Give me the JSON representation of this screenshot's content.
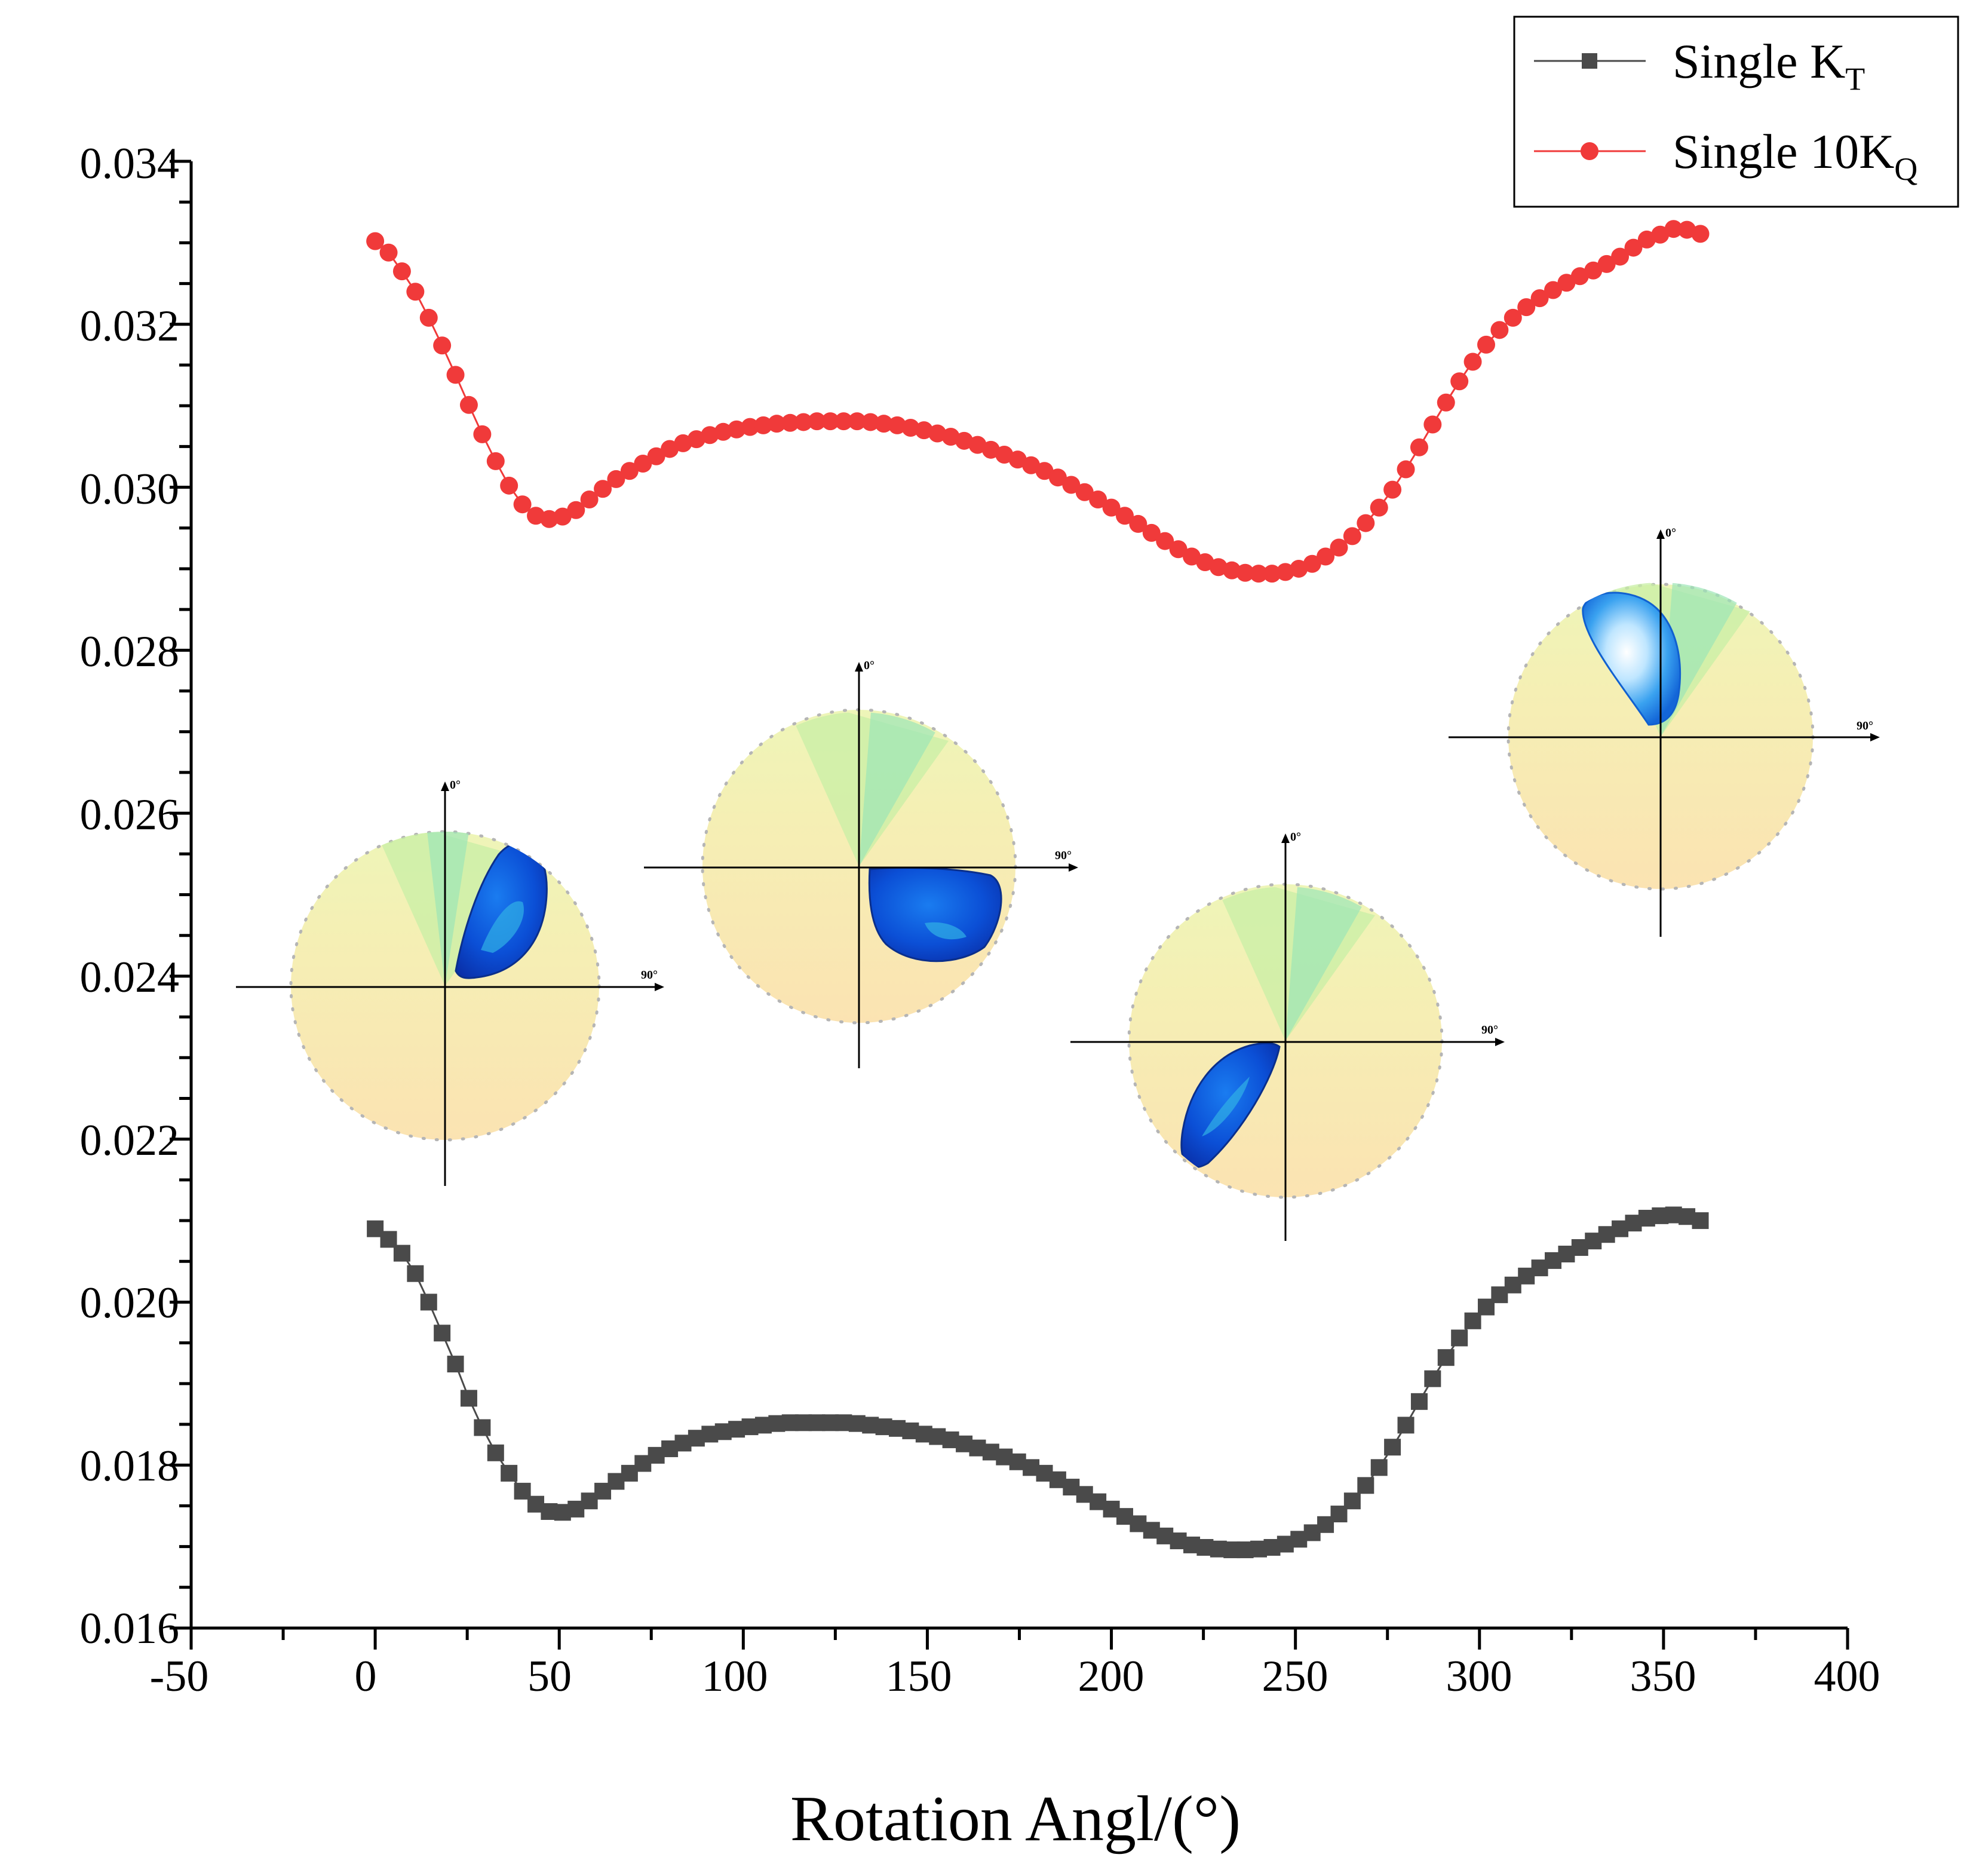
{
  "chart_data": {
    "type": "scatter-line",
    "title": "",
    "xlabel": "Rotation Angl/(°)",
    "ylabel": "",
    "xlim": [
      -50,
      400
    ],
    "ylim": [
      0.016,
      0.034
    ],
    "x_ticks": [
      "-50",
      "0",
      "50",
      "100",
      "150",
      "200",
      "250",
      "300",
      "350",
      "400"
    ],
    "y_ticks": [
      "0.016",
      "0.018",
      "0.020",
      "0.022",
      "0.024",
      "0.026",
      "0.028",
      "0.030",
      "0.032",
      "0.034"
    ],
    "grid": false,
    "legend_position": "top-right",
    "series": [
      {
        "name": "Single K_T",
        "label_main": "Single  K",
        "label_sub": "T",
        "marker": "square",
        "color": "#4a4a4a",
        "x": [
          0,
          3.64,
          7.27,
          10.91,
          14.55,
          18.18,
          21.82,
          25.45,
          29.09,
          32.73,
          36.36,
          40,
          43.64,
          47.27,
          50.91,
          54.55,
          58.18,
          61.82,
          65.45,
          69.09,
          72.73,
          76.36,
          80,
          83.64,
          87.27,
          90.91,
          94.55,
          98.18,
          101.82,
          105.45,
          109.09,
          112.73,
          116.36,
          120,
          123.64,
          127.27,
          130.91,
          134.55,
          138.18,
          141.82,
          145.45,
          149.09,
          152.73,
          156.36,
          160,
          163.64,
          167.27,
          170.91,
          174.55,
          178.18,
          181.82,
          185.45,
          189.09,
          192.73,
          196.36,
          200,
          203.64,
          207.27,
          210.91,
          214.55,
          218.18,
          221.82,
          225.45,
          229.09,
          232.73,
          236.36,
          240,
          243.64,
          247.27,
          250.91,
          254.55,
          258.18,
          261.82,
          265.45,
          269.09,
          272.73,
          276.36,
          280,
          283.64,
          287.27,
          290.91,
          294.55,
          298.18,
          301.82,
          305.45,
          309.09,
          312.73,
          316.36,
          320,
          323.64,
          327.27,
          330.91,
          334.55,
          338.18,
          341.82,
          345.45,
          349.09,
          352.73,
          356.36,
          360
        ],
        "y": [
          0.0209,
          0.02077,
          0.0206,
          0.02035,
          0.02,
          0.01962,
          0.01924,
          0.01882,
          0.01846,
          0.01815,
          0.0179,
          0.01768,
          0.01752,
          0.01743,
          0.01742,
          0.01746,
          0.01756,
          0.01768,
          0.0178,
          0.0179,
          0.01802,
          0.01812,
          0.0182,
          0.01827,
          0.01833,
          0.01838,
          0.01841,
          0.01844,
          0.01847,
          0.01849,
          0.01851,
          0.01852,
          0.01852,
          0.01852,
          0.01852,
          0.01852,
          0.01851,
          0.01849,
          0.01847,
          0.01845,
          0.01842,
          0.01838,
          0.01835,
          0.01831,
          0.01826,
          0.01821,
          0.01816,
          0.0181,
          0.01804,
          0.01797,
          0.0179,
          0.01782,
          0.01773,
          0.01764,
          0.01755,
          0.01746,
          0.01737,
          0.01728,
          0.0172,
          0.01713,
          0.01707,
          0.01702,
          0.01699,
          0.01697,
          0.01696,
          0.01696,
          0.01697,
          0.01699,
          0.01703,
          0.01709,
          0.01717,
          0.01727,
          0.0174,
          0.01756,
          0.01775,
          0.01797,
          0.01822,
          0.01849,
          0.01878,
          0.01906,
          0.01932,
          0.01956,
          0.01977,
          0.01994,
          0.02009,
          0.02021,
          0.02032,
          0.02042,
          0.02051,
          0.02059,
          0.02067,
          0.02075,
          0.02083,
          0.0209,
          0.02097,
          0.02103,
          0.02106,
          0.02107,
          0.02105,
          0.021
        ]
      },
      {
        "name": "Single 10K_Q",
        "label_main": "Single 10K",
        "label_sub": "Q",
        "marker": "circle",
        "color": "#f03a3a",
        "x": [
          0,
          3.64,
          7.27,
          10.91,
          14.55,
          18.18,
          21.82,
          25.45,
          29.09,
          32.73,
          36.36,
          40,
          43.64,
          47.27,
          50.91,
          54.55,
          58.18,
          61.82,
          65.45,
          69.09,
          72.73,
          76.36,
          80,
          83.64,
          87.27,
          90.91,
          94.55,
          98.18,
          101.82,
          105.45,
          109.09,
          112.73,
          116.36,
          120,
          123.64,
          127.27,
          130.91,
          134.55,
          138.18,
          141.82,
          145.45,
          149.09,
          152.73,
          156.36,
          160,
          163.64,
          167.27,
          170.91,
          174.55,
          178.18,
          181.82,
          185.45,
          189.09,
          192.73,
          196.36,
          200,
          203.64,
          207.27,
          210.91,
          214.55,
          218.18,
          221.82,
          225.45,
          229.09,
          232.73,
          236.36,
          240,
          243.64,
          247.27,
          250.91,
          254.55,
          258.18,
          261.82,
          265.45,
          269.09,
          272.73,
          276.36,
          280,
          283.64,
          287.27,
          290.91,
          294.55,
          298.18,
          301.82,
          305.45,
          309.09,
          312.73,
          316.36,
          320,
          323.64,
          327.27,
          330.91,
          334.55,
          338.18,
          341.82,
          345.45,
          349.09,
          352.73,
          356.36,
          360
        ],
        "y": [
          0.03302,
          0.03288,
          0.03265,
          0.0324,
          0.03208,
          0.03174,
          0.03138,
          0.03101,
          0.03065,
          0.03032,
          0.03002,
          0.02979,
          0.02965,
          0.02961,
          0.02964,
          0.02972,
          0.02985,
          0.02998,
          0.0301,
          0.0302,
          0.03029,
          0.03038,
          0.03047,
          0.03054,
          0.03059,
          0.03064,
          0.03068,
          0.03071,
          0.03074,
          0.03076,
          0.03078,
          0.03079,
          0.0308,
          0.03081,
          0.03081,
          0.03081,
          0.03081,
          0.0308,
          0.03078,
          0.03076,
          0.03073,
          0.0307,
          0.03066,
          0.03062,
          0.03057,
          0.03052,
          0.03046,
          0.0304,
          0.03034,
          0.03027,
          0.0302,
          0.03012,
          0.03003,
          0.02994,
          0.02985,
          0.02975,
          0.02965,
          0.02955,
          0.02944,
          0.02934,
          0.02924,
          0.02915,
          0.02908,
          0.02902,
          0.02898,
          0.02895,
          0.02894,
          0.02894,
          0.02896,
          0.029,
          0.02906,
          0.02915,
          0.02926,
          0.0294,
          0.02956,
          0.02975,
          0.02997,
          0.03022,
          0.03049,
          0.03077,
          0.03104,
          0.0313,
          0.03154,
          0.03175,
          0.03193,
          0.03208,
          0.03221,
          0.03232,
          0.03242,
          0.03251,
          0.03259,
          0.03266,
          0.03274,
          0.03283,
          0.03294,
          0.03304,
          0.0331,
          0.03317,
          0.03316,
          0.03311
        ]
      }
    ],
    "insets": [
      {
        "name": "inset-a",
        "axis_top": "0°",
        "axis_right": "90°"
      },
      {
        "name": "inset-b",
        "axis_top": "0°",
        "axis_right": "90°"
      },
      {
        "name": "inset-c",
        "axis_top": "0°",
        "axis_right": "90°"
      },
      {
        "name": "inset-d",
        "axis_top": "0°",
        "axis_right": "90°"
      }
    ]
  }
}
